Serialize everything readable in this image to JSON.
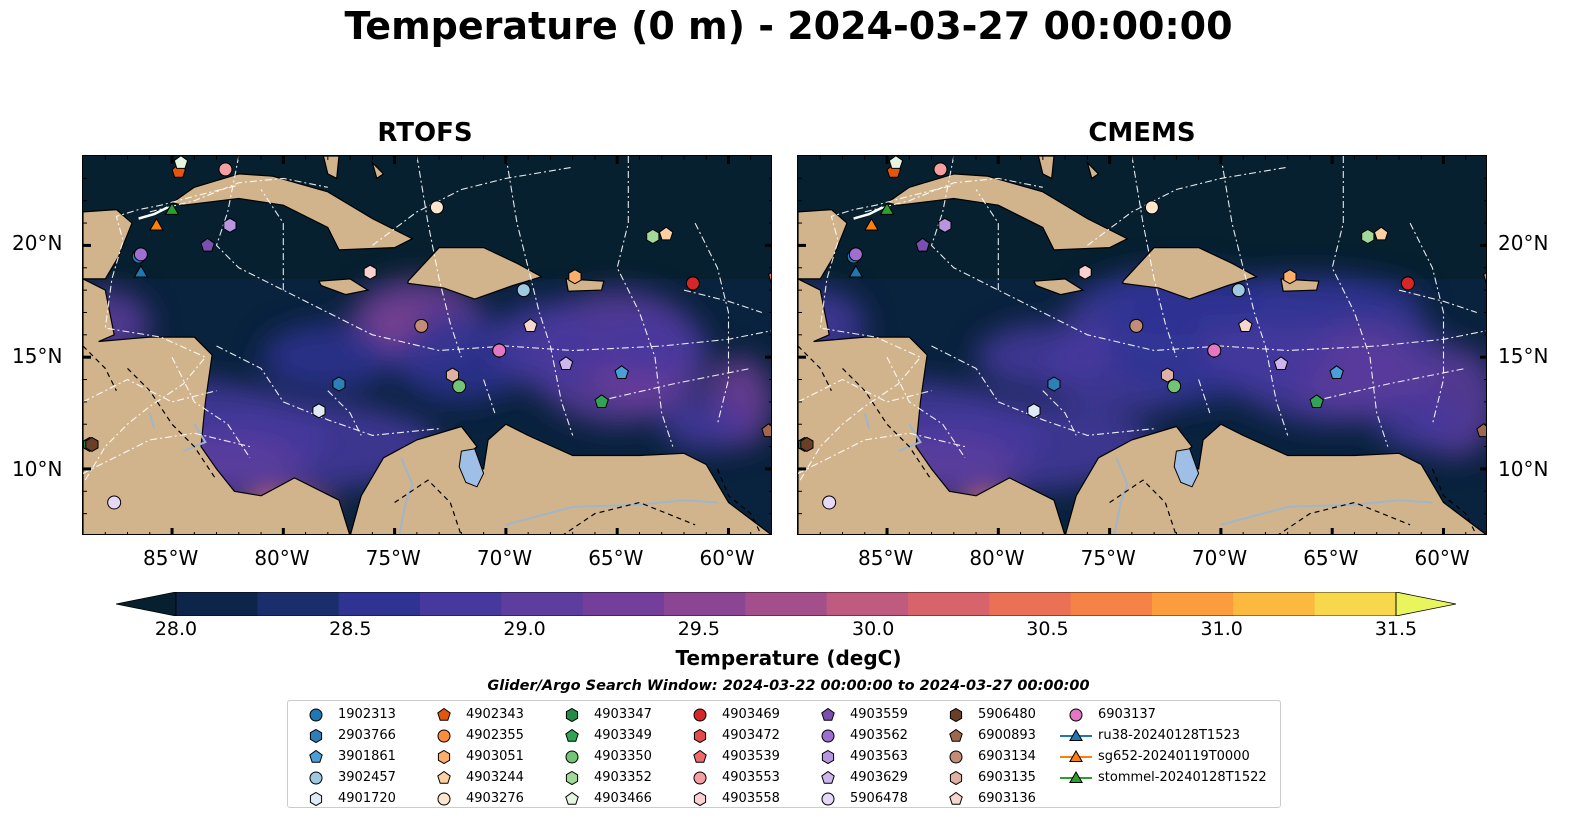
{
  "title": "Temperature (0 m) - 2024-03-27 00:00:00",
  "panels": [
    {
      "title": "RTOFS"
    },
    {
      "title": "CMEMS"
    }
  ],
  "axes": {
    "lon_labels": [
      "85°W",
      "80°W",
      "75°W",
      "70°W",
      "65°W",
      "60°W"
    ],
    "lat_labels": [
      "20°N",
      "15°N",
      "10°N"
    ]
  },
  "colorbar": {
    "label": "Temperature (degC)",
    "ticks": [
      "28.0",
      "28.5",
      "29.0",
      "29.5",
      "30.0",
      "30.5",
      "31.0",
      "31.5"
    ],
    "colors": [
      "#06202f",
      "#0c2549",
      "#1a2e6c",
      "#2f3493",
      "#47389e",
      "#5d3d9e",
      "#733f9a",
      "#8a4692",
      "#a24f8c",
      "#bf5b7e",
      "#d7646b",
      "#ea7056",
      "#f58347",
      "#fb9d3e",
      "#fcb93f",
      "#f7d84c",
      "#e9f55c"
    ]
  },
  "legend": {
    "title": "Glider/Argo Search Window: 2024-03-22 00:00:00 to 2024-03-27 00:00:00",
    "items": [
      {
        "label": "1902313",
        "marker": "circle",
        "color": "#1f77b4"
      },
      {
        "label": "2903766",
        "marker": "hexagon",
        "color": "#2c7fb8"
      },
      {
        "label": "3901861",
        "marker": "pentagon",
        "color": "#4a9fd8"
      },
      {
        "label": "3902457",
        "marker": "circle",
        "color": "#9ecae1"
      },
      {
        "label": "4901720",
        "marker": "hexagon",
        "color": "#deebf7"
      },
      {
        "label": "4902343",
        "marker": "pentagon",
        "color": "#e6550d"
      },
      {
        "label": "4902355",
        "marker": "circle",
        "color": "#fd8d3c"
      },
      {
        "label": "4903051",
        "marker": "hexagon",
        "color": "#fdae6b"
      },
      {
        "label": "4903244",
        "marker": "pentagon",
        "color": "#fdd0a2"
      },
      {
        "label": "4903276",
        "marker": "circle",
        "color": "#fee6ce"
      },
      {
        "label": "4903347",
        "marker": "hexagon",
        "color": "#238b45"
      },
      {
        "label": "4903349",
        "marker": "pentagon",
        "color": "#31a354"
      },
      {
        "label": "4903350",
        "marker": "circle",
        "color": "#74c476"
      },
      {
        "label": "4903352",
        "marker": "hexagon",
        "color": "#a1d99b"
      },
      {
        "label": "4903466",
        "marker": "pentagon",
        "color": "#e5f5e0"
      },
      {
        "label": "4903469",
        "marker": "circle",
        "color": "#d62728"
      },
      {
        "label": "4903472",
        "marker": "hexagon",
        "color": "#e34a4a"
      },
      {
        "label": "4903539",
        "marker": "pentagon",
        "color": "#ef6b6b"
      },
      {
        "label": "4903553",
        "marker": "circle",
        "color": "#f4a0a0"
      },
      {
        "label": "4903558",
        "marker": "hexagon",
        "color": "#fbd0d0"
      },
      {
        "label": "4903559",
        "marker": "pentagon",
        "color": "#7b4fb0"
      },
      {
        "label": "4903562",
        "marker": "circle",
        "color": "#9e6fd0"
      },
      {
        "label": "4903563",
        "marker": "hexagon",
        "color": "#b795e0"
      },
      {
        "label": "4903629",
        "marker": "pentagon",
        "color": "#cdb5ee"
      },
      {
        "label": "5906478",
        "marker": "circle",
        "color": "#e6d8f8"
      },
      {
        "label": "5906480",
        "marker": "hexagon",
        "color": "#6b3e26"
      },
      {
        "label": "6900893",
        "marker": "pentagon",
        "color": "#a0674f"
      },
      {
        "label": "6903134",
        "marker": "circle",
        "color": "#c48b76"
      },
      {
        "label": "6903135",
        "marker": "hexagon",
        "color": "#e0b0a2"
      },
      {
        "label": "6903136",
        "marker": "pentagon",
        "color": "#f7d6ce"
      },
      {
        "label": "6903137",
        "marker": "circle",
        "color": "#e377c2"
      },
      {
        "label": "ru38-20240128T1523",
        "marker": "triangle-line",
        "color": "#1f77b4"
      },
      {
        "label": "sg652-20240119T0000",
        "marker": "triangle-line",
        "color": "#ff7f0e"
      },
      {
        "label": "stommel-20240128T1522",
        "marker": "triangle-line",
        "color": "#2ca02c"
      }
    ]
  },
  "colors": {
    "ocean_cold": "#06202f",
    "land": "#d2b48c",
    "lake": "#9fbfe6",
    "boundary": "#ffffff"
  },
  "chart_data": {
    "type": "heatmap",
    "title": "Temperature (0 m) - 2024-03-27 00:00:00",
    "panels": [
      "RTOFS",
      "CMEMS"
    ],
    "variable": "Temperature",
    "units": "degC",
    "value_range": [
      28.0,
      31.5
    ],
    "lon_range": [
      -89,
      -58
    ],
    "lat_range": [
      7,
      24
    ],
    "xlabel": "",
    "ylabel": "",
    "colorbar_label": "Temperature (degC)",
    "colorbar_ticks": [
      28.0,
      28.5,
      29.0,
      29.5,
      30.0,
      30.5,
      31.0,
      31.5
    ],
    "colorbar_extend": "both",
    "legend_position": "bottom",
    "observations": [
      {
        "id": "1902313",
        "lon": -86.5,
        "lat": 19.5
      },
      {
        "id": "2903766",
        "lon": -77.5,
        "lat": 13.8
      },
      {
        "id": "3901861",
        "lon": -64.8,
        "lat": 14.3
      },
      {
        "id": "3902457",
        "lon": -69.2,
        "lat": 18.0
      },
      {
        "id": "4901720",
        "lon": -78.4,
        "lat": 12.6
      },
      {
        "id": "4902343",
        "lon": -84.7,
        "lat": 23.3
      },
      {
        "id": "4902355",
        "lon": -61.6,
        "lat": 18.3
      },
      {
        "id": "4903051",
        "lon": -66.9,
        "lat": 18.6
      },
      {
        "id": "4903244",
        "lon": -62.8,
        "lat": 20.5
      },
      {
        "id": "4903276",
        "lon": -73.1,
        "lat": 21.7
      },
      {
        "id": "4903347",
        "lon": -88.7,
        "lat": 11.1
      },
      {
        "id": "4903349",
        "lon": -65.7,
        "lat": 13.0
      },
      {
        "id": "4903350",
        "lon": -72.1,
        "lat": 13.7
      },
      {
        "id": "4903352",
        "lon": -63.4,
        "lat": 20.4
      },
      {
        "id": "4903466",
        "lon": -84.6,
        "lat": 23.7
      },
      {
        "id": "4903469",
        "lon": -61.6,
        "lat": 18.3
      },
      {
        "id": "4903472",
        "lon": -70.3,
        "lat": 15.3
      },
      {
        "id": "4903539",
        "lon": -57.9,
        "lat": 18.6
      },
      {
        "id": "4903553",
        "lon": -82.6,
        "lat": 23.4
      },
      {
        "id": "4903558",
        "lon": -76.1,
        "lat": 18.8
      },
      {
        "id": "4903559",
        "lon": -83.4,
        "lat": 20.0
      },
      {
        "id": "4903562",
        "lon": -86.4,
        "lat": 19.6
      },
      {
        "id": "4903563",
        "lon": -82.4,
        "lat": 20.9
      },
      {
        "id": "4903629",
        "lon": -67.3,
        "lat": 14.7
      },
      {
        "id": "5906478",
        "lon": -87.6,
        "lat": 8.5
      },
      {
        "id": "5906480",
        "lon": -88.6,
        "lat": 11.1
      },
      {
        "id": "6900893",
        "lon": -58.2,
        "lat": 11.7
      },
      {
        "id": "6903134",
        "lon": -73.8,
        "lat": 16.4
      },
      {
        "id": "6903135",
        "lon": -72.4,
        "lat": 14.2
      },
      {
        "id": "6903136",
        "lon": -68.9,
        "lat": 16.4
      },
      {
        "id": "6903137",
        "lon": -70.3,
        "lat": 15.3
      }
    ],
    "glider_tracks": [
      {
        "id": "ru38-20240128T1523",
        "lon": -86.4,
        "lat": 18.8
      },
      {
        "id": "sg652-20240119T0000",
        "lon": -85.7,
        "lat": 20.9
      },
      {
        "id": "stommel-20240128T1522",
        "lon": -85.0,
        "lat": 21.6
      }
    ]
  }
}
